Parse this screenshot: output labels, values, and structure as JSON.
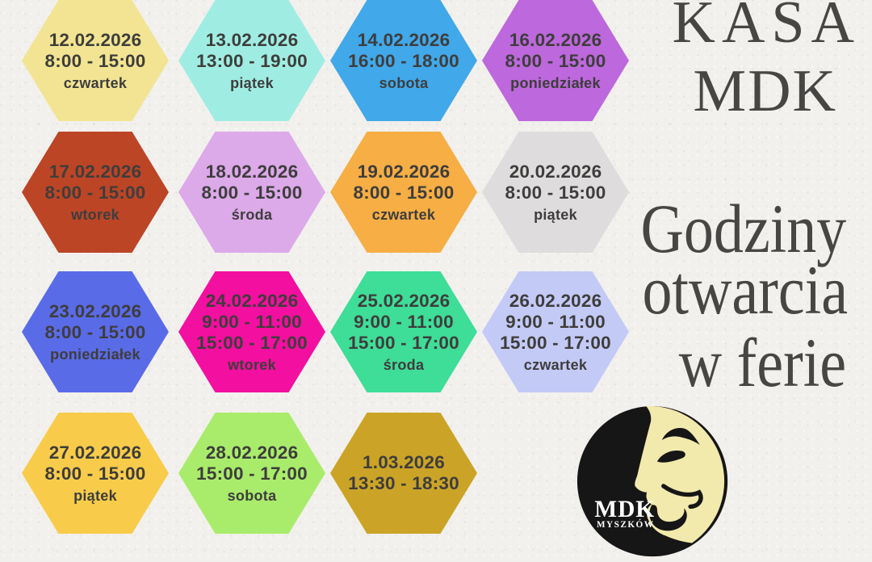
{
  "poster": {
    "background_color": "#F2F0ED",
    "hex_text_color": "#3E3D3C",
    "title_text_color": "#474645"
  },
  "title": {
    "line1": "KASA",
    "line2": "MDK"
  },
  "subtitle": {
    "line1": "Godziny",
    "line2": "otwarcia",
    "line3": "w ferie"
  },
  "logo": {
    "acronym": "MDK",
    "city": "MYSZKÓW",
    "circle_color": "#161616",
    "mask_color": "#F2E9AC",
    "text_color": "#FFFFFF"
  },
  "hexagons": [
    {
      "date": "12.02.2026",
      "times": [
        "8:00 - 15:00"
      ],
      "day": "czwartek",
      "color": "#F2E492"
    },
    {
      "date": "13.02.2026",
      "times": [
        "13:00 - 19:00"
      ],
      "day": "piątek",
      "color": "#9FEDE2"
    },
    {
      "date": "14.02.2026",
      "times": [
        "16:00 - 18:00"
      ],
      "day": "sobota",
      "color": "#41A8EA"
    },
    {
      "date": "16.02.2026",
      "times": [
        "8:00 - 15:00"
      ],
      "day": "poniedziałek",
      "color": "#BD68DC"
    },
    {
      "date": "17.02.2026",
      "times": [
        "8:00 - 15:00"
      ],
      "day": "wtorek",
      "color": "#BC4526"
    },
    {
      "date": "18.02.2026",
      "times": [
        "8:00 - 15:00"
      ],
      "day": "środa",
      "color": "#DCA9E9"
    },
    {
      "date": "19.02.2026",
      "times": [
        "8:00 - 15:00"
      ],
      "day": "czwartek",
      "color": "#F6AE45"
    },
    {
      "date": "20.02.2026",
      "times": [
        "8:00 - 15:00"
      ],
      "day": "piątek",
      "color": "#DEDCDC"
    },
    {
      "date": "23.02.2026",
      "times": [
        "8:00 - 15:00"
      ],
      "day": "poniedziałek",
      "color": "#5A6BE8"
    },
    {
      "date": "24.02.2026",
      "times": [
        "9:00 - 11:00",
        "15:00 - 17:00"
      ],
      "day": "wtorek",
      "color": "#F30FA0"
    },
    {
      "date": "25.02.2026",
      "times": [
        "9:00 - 11:00",
        "15:00 - 17:00"
      ],
      "day": "środa",
      "color": "#3EDD98"
    },
    {
      "date": "26.02.2026",
      "times": [
        "9:00 - 11:00",
        "15:00 - 17:00"
      ],
      "day": "czwartek",
      "color": "#C3CAF6"
    },
    {
      "date": "27.02.2026",
      "times": [
        "8:00 - 15:00"
      ],
      "day": "piątek",
      "color": "#F8CC4A"
    },
    {
      "date": "28.02.2026",
      "times": [
        "15:00 - 17:00"
      ],
      "day": "sobota",
      "color": "#A9EC6B"
    },
    {
      "date": "1.03.2026",
      "times": [
        "13:30 - 18:30"
      ],
      "day": "",
      "color": "#CBA427"
    }
  ]
}
